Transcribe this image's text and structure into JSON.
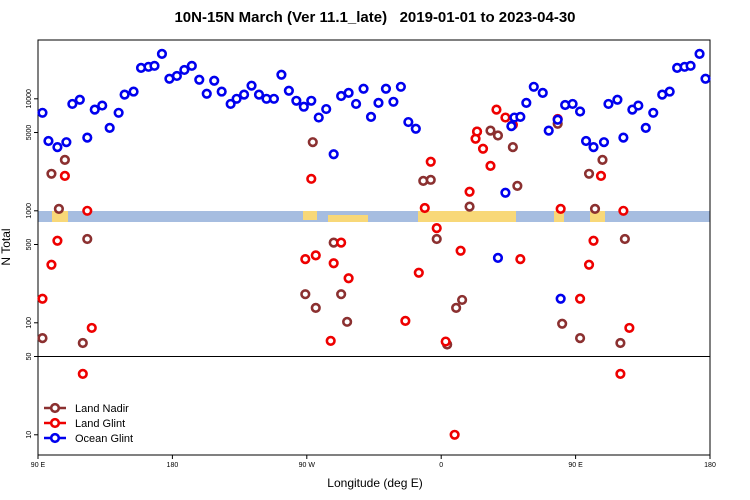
{
  "chart_data": {
    "type": "scatter",
    "title": "10N-15N March (Ver 11.1_late)   2019-01-01 to 2023-04-30",
    "x_label": "Longitude (deg E)",
    "y_label": "N Total",
    "xlim": [
      90,
      540
    ],
    "xticks": [
      {
        "value": 90,
        "label": "90 E"
      },
      180,
      {
        "value": 270,
        "label": "90 W"
      },
      {
        "value": 360,
        "label": "0"
      },
      {
        "value": 450,
        "label": "90 E"
      },
      {
        "value": 540,
        "label": "180"
      }
    ],
    "ylim": [
      6.6,
      33500
    ],
    "log_y": true,
    "yticks": [
      10,
      50,
      100,
      500,
      1000,
      5000,
      10000
    ],
    "panel_split": 50,
    "legend": "lower left",
    "series": [
      {
        "name": "Land Nadir",
        "color": "#8b3030",
        "x": [
          93,
          99,
          104,
          108,
          120,
          123,
          269,
          274,
          276,
          288,
          293,
          297,
          348,
          353,
          357,
          364,
          370,
          374,
          379,
          384,
          393,
          398,
          408,
          411,
          438,
          441,
          453,
          459,
          463,
          468,
          480,
          483
        ],
        "values": [
          73,
          2140,
          1040,
          2850,
          66,
          560,
          180,
          4100,
          136,
          520,
          180,
          102,
          1850,
          1890,
          560,
          64,
          136,
          160,
          1090,
          5100,
          5200,
          4700,
          3700,
          1670,
          5980,
          98,
          73,
          2140,
          1040,
          2850,
          66,
          560
        ]
      },
      {
        "name": "Land Glint",
        "color": "#ee0000",
        "x": [
          93,
          99,
          103,
          108,
          120,
          123,
          126,
          269,
          273,
          276,
          286,
          288,
          293,
          298,
          336,
          345,
          349,
          353,
          357,
          363,
          369,
          373,
          379,
          383,
          384,
          388,
          393,
          397,
          403,
          408,
          413,
          438,
          440,
          453,
          459,
          462,
          467,
          480,
          482,
          486
        ],
        "values": [
          164,
          330,
          540,
          2050,
          35,
          1000,
          90,
          370,
          1930,
          400,
          69,
          340,
          520,
          250,
          104,
          280,
          1060,
          2740,
          700,
          68,
          10,
          440,
          1480,
          4400,
          5100,
          3580,
          2520,
          8000,
          6800,
          5860,
          370,
          6600,
          1040,
          164,
          330,
          540,
          2050,
          35,
          1000,
          90
        ]
      },
      {
        "name": "Ocean Glint",
        "color": "#0000ee",
        "x": [
          93,
          97,
          103,
          109,
          113,
          118,
          123,
          128,
          133,
          138,
          144,
          148,
          154,
          159,
          164,
          168,
          173,
          178,
          183,
          188,
          193,
          198,
          203,
          208,
          213,
          219,
          223,
          228,
          233,
          238,
          243,
          248,
          253,
          258,
          263,
          268,
          273,
          278,
          283,
          288,
          293,
          298,
          303,
          308,
          313,
          318,
          323,
          328,
          333,
          338,
          343,
          398,
          403,
          407,
          409,
          413,
          417,
          422,
          428,
          432,
          438,
          440,
          443,
          448,
          453,
          457,
          462,
          469,
          472,
          478,
          482,
          488,
          492,
          497,
          502,
          508,
          513,
          518,
          523,
          527,
          533,
          537
        ],
        "values": [
          7500,
          4200,
          3700,
          4100,
          9000,
          9800,
          4500,
          8000,
          8700,
          5500,
          7500,
          10900,
          11600,
          18900,
          19300,
          19700,
          25200,
          15100,
          16000,
          18100,
          19700,
          14800,
          11100,
          14500,
          11600,
          9000,
          10000,
          10900,
          13100,
          10900,
          10000,
          10000,
          16400,
          11800,
          9600,
          8500,
          9600,
          6800,
          8100,
          3200,
          10600,
          11300,
          9000,
          12300,
          6900,
          9200,
          12300,
          9400,
          12800,
          6200,
          5400,
          380,
          1450,
          5700,
          6800,
          6900,
          9200,
          12800,
          11300,
          5200,
          6500,
          164,
          8800,
          9000,
          7700,
          4200,
          3700,
          4100,
          9000,
          9800,
          4500,
          8000,
          8700,
          5500,
          7500,
          10900,
          11600,
          18900,
          19300,
          19700,
          25200,
          15100
        ]
      }
    ]
  }
}
